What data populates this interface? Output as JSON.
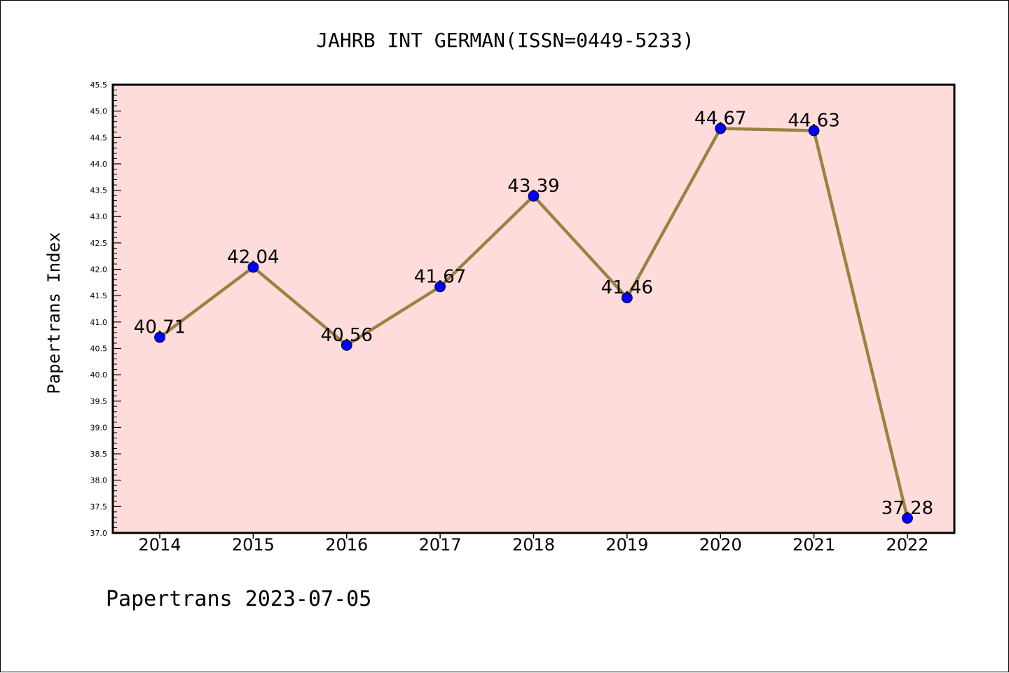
{
  "chart_data": {
    "type": "line",
    "title": "JAHRB INT GERMAN(ISSN=0449-5233)",
    "ylabel": "Papertrans Index",
    "xlabel": "",
    "footer": "Papertrans 2023-07-05",
    "x": [
      "2014",
      "2015",
      "2016",
      "2017",
      "2018",
      "2019",
      "2020",
      "2021",
      "2022"
    ],
    "series": [
      {
        "values": [
          40.71,
          42.04,
          40.56,
          41.67,
          43.39,
          41.46,
          44.67,
          44.63,
          37.28
        ],
        "labels": [
          "40.71",
          "42.04",
          "40.56",
          "41.67",
          "43.39",
          "41.46",
          "44.67",
          "44.63",
          "37.28"
        ]
      }
    ],
    "ylim": [
      37.0,
      45.5
    ],
    "yticks": [
      "37.0",
      "37.5",
      "38.0",
      "38.5",
      "39.0",
      "39.5",
      "40.0",
      "40.5",
      "41.0",
      "41.5",
      "42.0",
      "42.5",
      "43.0",
      "43.5",
      "44.0",
      "44.5",
      "45.0",
      "45.5"
    ],
    "grid": false,
    "colors": {
      "plot_background": "#ffdcdc",
      "line": "#988440",
      "marker": "#0000ff",
      "axes": "#000000"
    }
  }
}
